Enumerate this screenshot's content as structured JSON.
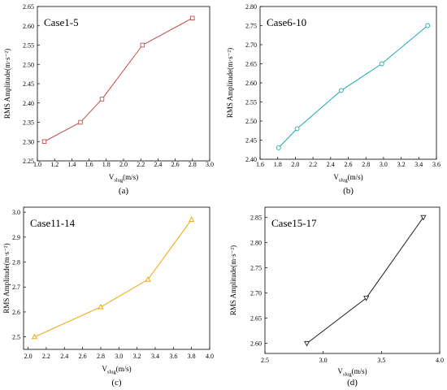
{
  "chart_data": [
    {
      "type": "line",
      "title": "Case1-5",
      "caption": "(a)",
      "ylabel": "RMS Amplitude(m·s⁻²)",
      "xlabel": {
        "main": "V",
        "sub": "slug",
        "unit": "(m/s)"
      },
      "xlim": [
        1.0,
        3.0
      ],
      "ylim": [
        2.25,
        2.65
      ],
      "xticks": [
        "1.0",
        "1.2",
        "1.4",
        "1.6",
        "1.8",
        "2.0",
        "2.2",
        "2.4",
        "2.6",
        "2.8",
        "3.0"
      ],
      "yticks": [
        "2.25",
        "2.30",
        "2.35",
        "2.40",
        "2.45",
        "2.50",
        "2.55",
        "2.60",
        "2.65"
      ],
      "color": "#c0504d",
      "marker": "square",
      "x": [
        1.08,
        1.5,
        1.75,
        2.22,
        2.8
      ],
      "y": [
        2.3,
        2.35,
        2.41,
        2.55,
        2.62
      ]
    },
    {
      "type": "line",
      "title": "Case6-10",
      "caption": "(b)",
      "ylabel": "RMS Amplitude(m·s⁻²)",
      "xlabel": {
        "main": "V",
        "sub": "slug",
        "unit": "(m/s)"
      },
      "xlim": [
        1.6,
        3.6
      ],
      "ylim": [
        2.4,
        2.8
      ],
      "xticks": [
        "1.6",
        "1.8",
        "2.0",
        "2.2",
        "2.4",
        "2.6",
        "2.8",
        "3.0",
        "3.2",
        "3.4",
        "3.6"
      ],
      "yticks": [
        "2.40",
        "2.45",
        "2.50",
        "2.55",
        "2.60",
        "2.65",
        "2.70",
        "2.75",
        "2.80"
      ],
      "color": "#1ba7b0",
      "marker": "circle",
      "x": [
        1.81,
        2.02,
        2.52,
        2.98,
        3.5
      ],
      "y": [
        2.43,
        2.48,
        2.58,
        2.65,
        2.75
      ]
    },
    {
      "type": "line",
      "title": "Case11-14",
      "caption": "(c)",
      "ylabel": "RMS Amplitude(m·s⁻²)",
      "xlabel": {
        "main": "V",
        "sub": "slug",
        "unit": "(m/s)"
      },
      "xlim": [
        1.95,
        4.0
      ],
      "ylim": [
        2.45,
        3.02
      ],
      "xticks": [
        "2.0",
        "2.2",
        "2.4",
        "2.6",
        "2.8",
        "3.0",
        "3.2",
        "3.4",
        "3.6",
        "3.8",
        "4.0"
      ],
      "yticks": [
        "2.5",
        "2.6",
        "2.7",
        "2.8",
        "2.9",
        "3.0"
      ],
      "color": "#f0a202",
      "marker": "triangle-up",
      "x": [
        2.07,
        2.8,
        3.32,
        3.8
      ],
      "y": [
        2.5,
        2.62,
        2.73,
        2.97
      ]
    },
    {
      "type": "line",
      "title": "Case15-17",
      "caption": "(d)",
      "ylabel": "RMS Amplitude(m·s⁻²)",
      "xlabel": {
        "main": "V",
        "sub": "slug",
        "unit": "(m/s)"
      },
      "xlim": [
        2.5,
        4.0
      ],
      "ylim": [
        2.58,
        2.87
      ],
      "xticks": [
        "2.5",
        "3.0",
        "3.5",
        "4.0"
      ],
      "yticks": [
        "2.60",
        "2.65",
        "2.70",
        "2.75",
        "2.80",
        "2.85"
      ],
      "color": "#222222",
      "marker": "triangle-down",
      "x": [
        2.86,
        3.37,
        3.86
      ],
      "y": [
        2.6,
        2.69,
        2.85
      ]
    }
  ]
}
